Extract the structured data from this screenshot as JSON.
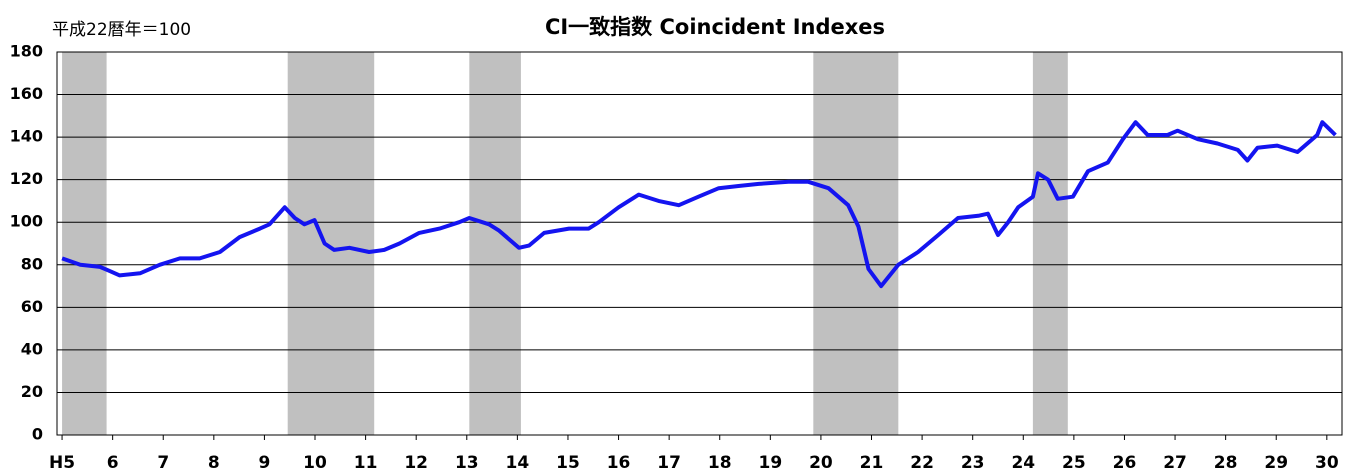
{
  "chart_data": {
    "type": "line",
    "title": "CI一致指数 Coincident Indexes",
    "unit_label": "平成22暦年＝100",
    "x": [
      5.0,
      5.36,
      5.75,
      5.95,
      6.14,
      6.54,
      6.93,
      7.33,
      7.72,
      8.12,
      8.51,
      8.91,
      9.1,
      9.4,
      9.6,
      9.79,
      9.99,
      10.19,
      10.38,
      10.68,
      11.07,
      11.37,
      11.67,
      12.06,
      12.46,
      12.85,
      13.05,
      13.44,
      13.64,
      14.03,
      14.23,
      14.53,
      15.02,
      15.41,
      15.61,
      16.0,
      16.4,
      16.79,
      17.19,
      17.58,
      17.98,
      18.37,
      18.77,
      19.36,
      19.75,
      20.15,
      20.54,
      20.74,
      20.94,
      21.19,
      21.53,
      21.92,
      22.32,
      22.71,
      23.11,
      23.3,
      23.5,
      23.7,
      23.9,
      24.19,
      24.29,
      24.49,
      24.68,
      24.98,
      25.28,
      25.67,
      25.97,
      26.22,
      26.46,
      26.85,
      27.05,
      27.45,
      27.84,
      28.24,
      28.43,
      28.63,
      29.02,
      29.42,
      29.81,
      29.91,
      30.17
    ],
    "series": [
      {
        "name": "CI一致指数",
        "color": "#1414f0",
        "values": [
          83,
          80,
          79,
          77,
          75,
          76,
          80,
          83,
          83,
          86,
          93,
          97,
          99,
          107,
          102,
          99,
          101,
          90,
          87,
          88,
          86,
          87,
          90,
          95,
          97,
          100,
          102,
          99,
          96,
          88,
          89,
          95,
          97,
          97,
          100,
          107,
          113,
          110,
          108,
          112,
          116,
          117,
          118,
          119,
          119,
          116,
          108,
          98,
          78,
          70,
          80,
          86,
          94,
          102,
          103,
          104,
          94,
          100,
          107,
          112,
          123,
          120,
          111,
          112,
          124,
          128,
          139,
          147,
          141,
          141,
          143,
          139,
          137,
          134,
          129,
          135,
          136,
          133,
          141,
          147,
          141
        ]
      }
    ],
    "recessions": [
      [
        5.0,
        5.88
      ],
      [
        9.46,
        11.17
      ],
      [
        13.05,
        14.07
      ],
      [
        19.85,
        21.53
      ],
      [
        24.19,
        24.88
      ]
    ],
    "recession_color": "#c0c0c0",
    "xlim": [
      4.9,
      30.3
    ],
    "xticks": [
      {
        "value": 5,
        "label": "H5"
      },
      6,
      7,
      8,
      9,
      10,
      11,
      12,
      13,
      14,
      15,
      16,
      17,
      18,
      19,
      20,
      21,
      22,
      23,
      24,
      25,
      26,
      27,
      28,
      29,
      30
    ],
    "ylim": [
      0,
      180
    ],
    "yticks": [
      0,
      20,
      40,
      60,
      80,
      100,
      120,
      140,
      160,
      180
    ],
    "grid": true
  }
}
